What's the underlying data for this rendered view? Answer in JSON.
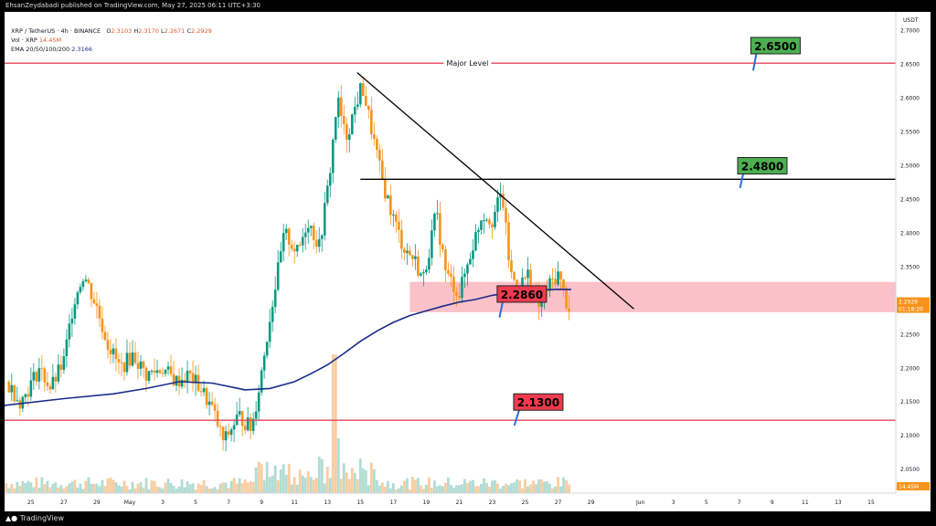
{
  "header": {
    "publisher_line": "EhsanZeydabadi published on TradingView.com, May 27, 2025 06:11 UTC+3:30"
  },
  "legend": {
    "symbol_line": "XRP / TetherUS · 4h · BINANCE",
    "ohlc": {
      "o_label": "O",
      "o": "2.3103",
      "h_label": "H",
      "h": "2.3170",
      "l_label": "L",
      "l": "2.2671",
      "c_label": "C",
      "c": "2.2929"
    },
    "vol_label": "Vol · XRP",
    "vol_value": "14.45M",
    "ema_label": "EMA 20/50/100/200",
    "ema_value": "2.3166"
  },
  "footer": {
    "brand": "TradingView"
  },
  "colors": {
    "up": "#089981",
    "down": "#f7931a",
    "wick": "#555555",
    "ema": "#1a2c8a",
    "level_line": "#e0455a",
    "zone": "#f9b6bf",
    "green_label": "#4caf50",
    "red_label": "#ef3b4f",
    "price_tag": "#f7931a",
    "pointer": "#2e6bd6"
  },
  "chart_data": {
    "type": "candlestick",
    "y_axis": {
      "unit": "USDT",
      "ticks": [
        "2.7000",
        "2.6500",
        "2.6000",
        "2.5500",
        "2.5000",
        "2.4500",
        "2.4000",
        "2.3500",
        "2.3000",
        "2.2500",
        "2.2000",
        "2.1500",
        "2.1000",
        "2.0500"
      ],
      "tick_values": [
        2.7,
        2.65,
        2.6,
        2.55,
        2.5,
        2.45,
        2.4,
        2.35,
        2.3,
        2.25,
        2.2,
        2.15,
        2.1,
        2.05
      ],
      "range": [
        2.015,
        2.728
      ]
    },
    "x_axis": {
      "ticks": [
        "25",
        "27",
        "29",
        "May",
        "3",
        "5",
        "7",
        "9",
        "11",
        "13",
        "15",
        "17",
        "19",
        "21",
        "23",
        "25",
        "27",
        "29",
        "Jun",
        "3",
        "5",
        "7",
        "9",
        "11",
        "13",
        "15"
      ],
      "tick_days": [
        -6,
        -4,
        -2,
        0,
        2,
        4,
        6,
        8,
        10,
        12,
        14,
        16,
        18,
        20,
        22,
        24,
        26,
        28,
        31,
        33,
        35,
        37,
        39,
        41,
        43,
        45
      ],
      "range_days": [
        -7.6,
        46.5
      ]
    },
    "price_key_points": [
      {
        "d": -7.5,
        "p": 2.18
      },
      {
        "d": -6.6,
        "p": 2.15
      },
      {
        "d": -5.5,
        "p": 2.2
      },
      {
        "d": -4.8,
        "p": 2.17
      },
      {
        "d": -4.0,
        "p": 2.21
      },
      {
        "d": -3.4,
        "p": 2.3
      },
      {
        "d": -2.8,
        "p": 2.34
      },
      {
        "d": -2.0,
        "p": 2.29
      },
      {
        "d": -1.4,
        "p": 2.24
      },
      {
        "d": -0.6,
        "p": 2.2
      },
      {
        "d": 0.2,
        "p": 2.22
      },
      {
        "d": 1.0,
        "p": 2.19
      },
      {
        "d": 2.0,
        "p": 2.2
      },
      {
        "d": 2.8,
        "p": 2.18
      },
      {
        "d": 3.6,
        "p": 2.19
      },
      {
        "d": 4.3,
        "p": 2.17
      },
      {
        "d": 5.0,
        "p": 2.14
      },
      {
        "d": 5.7,
        "p": 2.09
      },
      {
        "d": 6.6,
        "p": 2.13
      },
      {
        "d": 7.4,
        "p": 2.11
      },
      {
        "d": 7.9,
        "p": 2.18
      },
      {
        "d": 8.6,
        "p": 2.29
      },
      {
        "d": 9.4,
        "p": 2.4
      },
      {
        "d": 10.2,
        "p": 2.37
      },
      {
        "d": 10.8,
        "p": 2.42
      },
      {
        "d": 11.5,
        "p": 2.38
      },
      {
        "d": 12.1,
        "p": 2.48
      },
      {
        "d": 12.6,
        "p": 2.6
      },
      {
        "d": 13.1,
        "p": 2.54
      },
      {
        "d": 13.6,
        "p": 2.58
      },
      {
        "d": 14.1,
        "p": 2.62
      },
      {
        "d": 14.7,
        "p": 2.55
      },
      {
        "d": 15.3,
        "p": 2.48
      },
      {
        "d": 15.9,
        "p": 2.43
      },
      {
        "d": 16.6,
        "p": 2.38
      },
      {
        "d": 17.3,
        "p": 2.36
      },
      {
        "d": 17.8,
        "p": 2.33
      },
      {
        "d": 18.6,
        "p": 2.43
      },
      {
        "d": 19.2,
        "p": 2.34
      },
      {
        "d": 20.0,
        "p": 2.31
      },
      {
        "d": 20.8,
        "p": 2.38
      },
      {
        "d": 21.4,
        "p": 2.43
      },
      {
        "d": 22.0,
        "p": 2.42
      },
      {
        "d": 22.6,
        "p": 2.46
      },
      {
        "d": 23.1,
        "p": 2.34
      },
      {
        "d": 23.6,
        "p": 2.32
      },
      {
        "d": 24.2,
        "p": 2.34
      },
      {
        "d": 24.8,
        "p": 2.29
      },
      {
        "d": 25.4,
        "p": 2.32
      },
      {
        "d": 26.0,
        "p": 2.34
      },
      {
        "d": 26.6,
        "p": 2.29
      }
    ],
    "lines": [
      {
        "label": "Major Level",
        "price": 2.652,
        "d_from": -7.6,
        "d_to": 46.5
      },
      {
        "price": 2.48,
        "d_from": 14.0,
        "d_to": 46.5
      },
      {
        "price": 2.123,
        "d_from": -7.6,
        "d_to": 46.5
      },
      {
        "price_from": 2.638,
        "price_to": 2.288,
        "d_from": 13.8,
        "d_to": 30.6
      }
    ],
    "zone": {
      "price_low": 2.283,
      "price_high": 2.328,
      "d_from": 17.0,
      "d_to": 46.5
    },
    "ema_points": [
      {
        "d": -7.6,
        "p": 2.145
      },
      {
        "d": -4,
        "p": 2.155
      },
      {
        "d": -1,
        "p": 2.162
      },
      {
        "d": 1,
        "p": 2.17
      },
      {
        "d": 3,
        "p": 2.18
      },
      {
        "d": 5,
        "p": 2.178
      },
      {
        "d": 7,
        "p": 2.168
      },
      {
        "d": 8.5,
        "p": 2.17
      },
      {
        "d": 10,
        "p": 2.18
      },
      {
        "d": 11,
        "p": 2.192
      },
      {
        "d": 12,
        "p": 2.205
      },
      {
        "d": 13,
        "p": 2.222
      },
      {
        "d": 14,
        "p": 2.24
      },
      {
        "d": 15,
        "p": 2.255
      },
      {
        "d": 16,
        "p": 2.268
      },
      {
        "d": 17,
        "p": 2.278
      },
      {
        "d": 18,
        "p": 2.285
      },
      {
        "d": 19,
        "p": 2.292
      },
      {
        "d": 20,
        "p": 2.298
      },
      {
        "d": 21,
        "p": 2.302
      },
      {
        "d": 22,
        "p": 2.308
      },
      {
        "d": 23,
        "p": 2.312
      },
      {
        "d": 24,
        "p": 2.315
      },
      {
        "d": 25,
        "p": 2.316
      },
      {
        "d": 26,
        "p": 2.317
      },
      {
        "d": 26.8,
        "p": 2.3166
      }
    ],
    "callouts": [
      {
        "text": "2.6500",
        "kind": "green",
        "price": 2.678,
        "d": 14.2,
        "from": {
          "d": 13.9,
          "p": 2.652
        }
      },
      {
        "text": "2.4800",
        "kind": "green",
        "price": 2.5,
        "d": 13.4,
        "from": {
          "d": 13.1,
          "p": 2.478
        }
      },
      {
        "text": "2.2860",
        "kind": "red",
        "price": 2.31,
        "d": 3.8,
        "from": {
          "d": 3.5,
          "p": 2.286
        }
      },
      {
        "text": "2.1300",
        "kind": "red",
        "price": 2.15,
        "d": 4.8,
        "from": {
          "d": 4.4,
          "p": 2.126
        }
      }
    ],
    "last_price": {
      "value": "2.2929",
      "countdown": "01:18:20",
      "price": 2.2929
    },
    "volume_label": "14.45M"
  }
}
